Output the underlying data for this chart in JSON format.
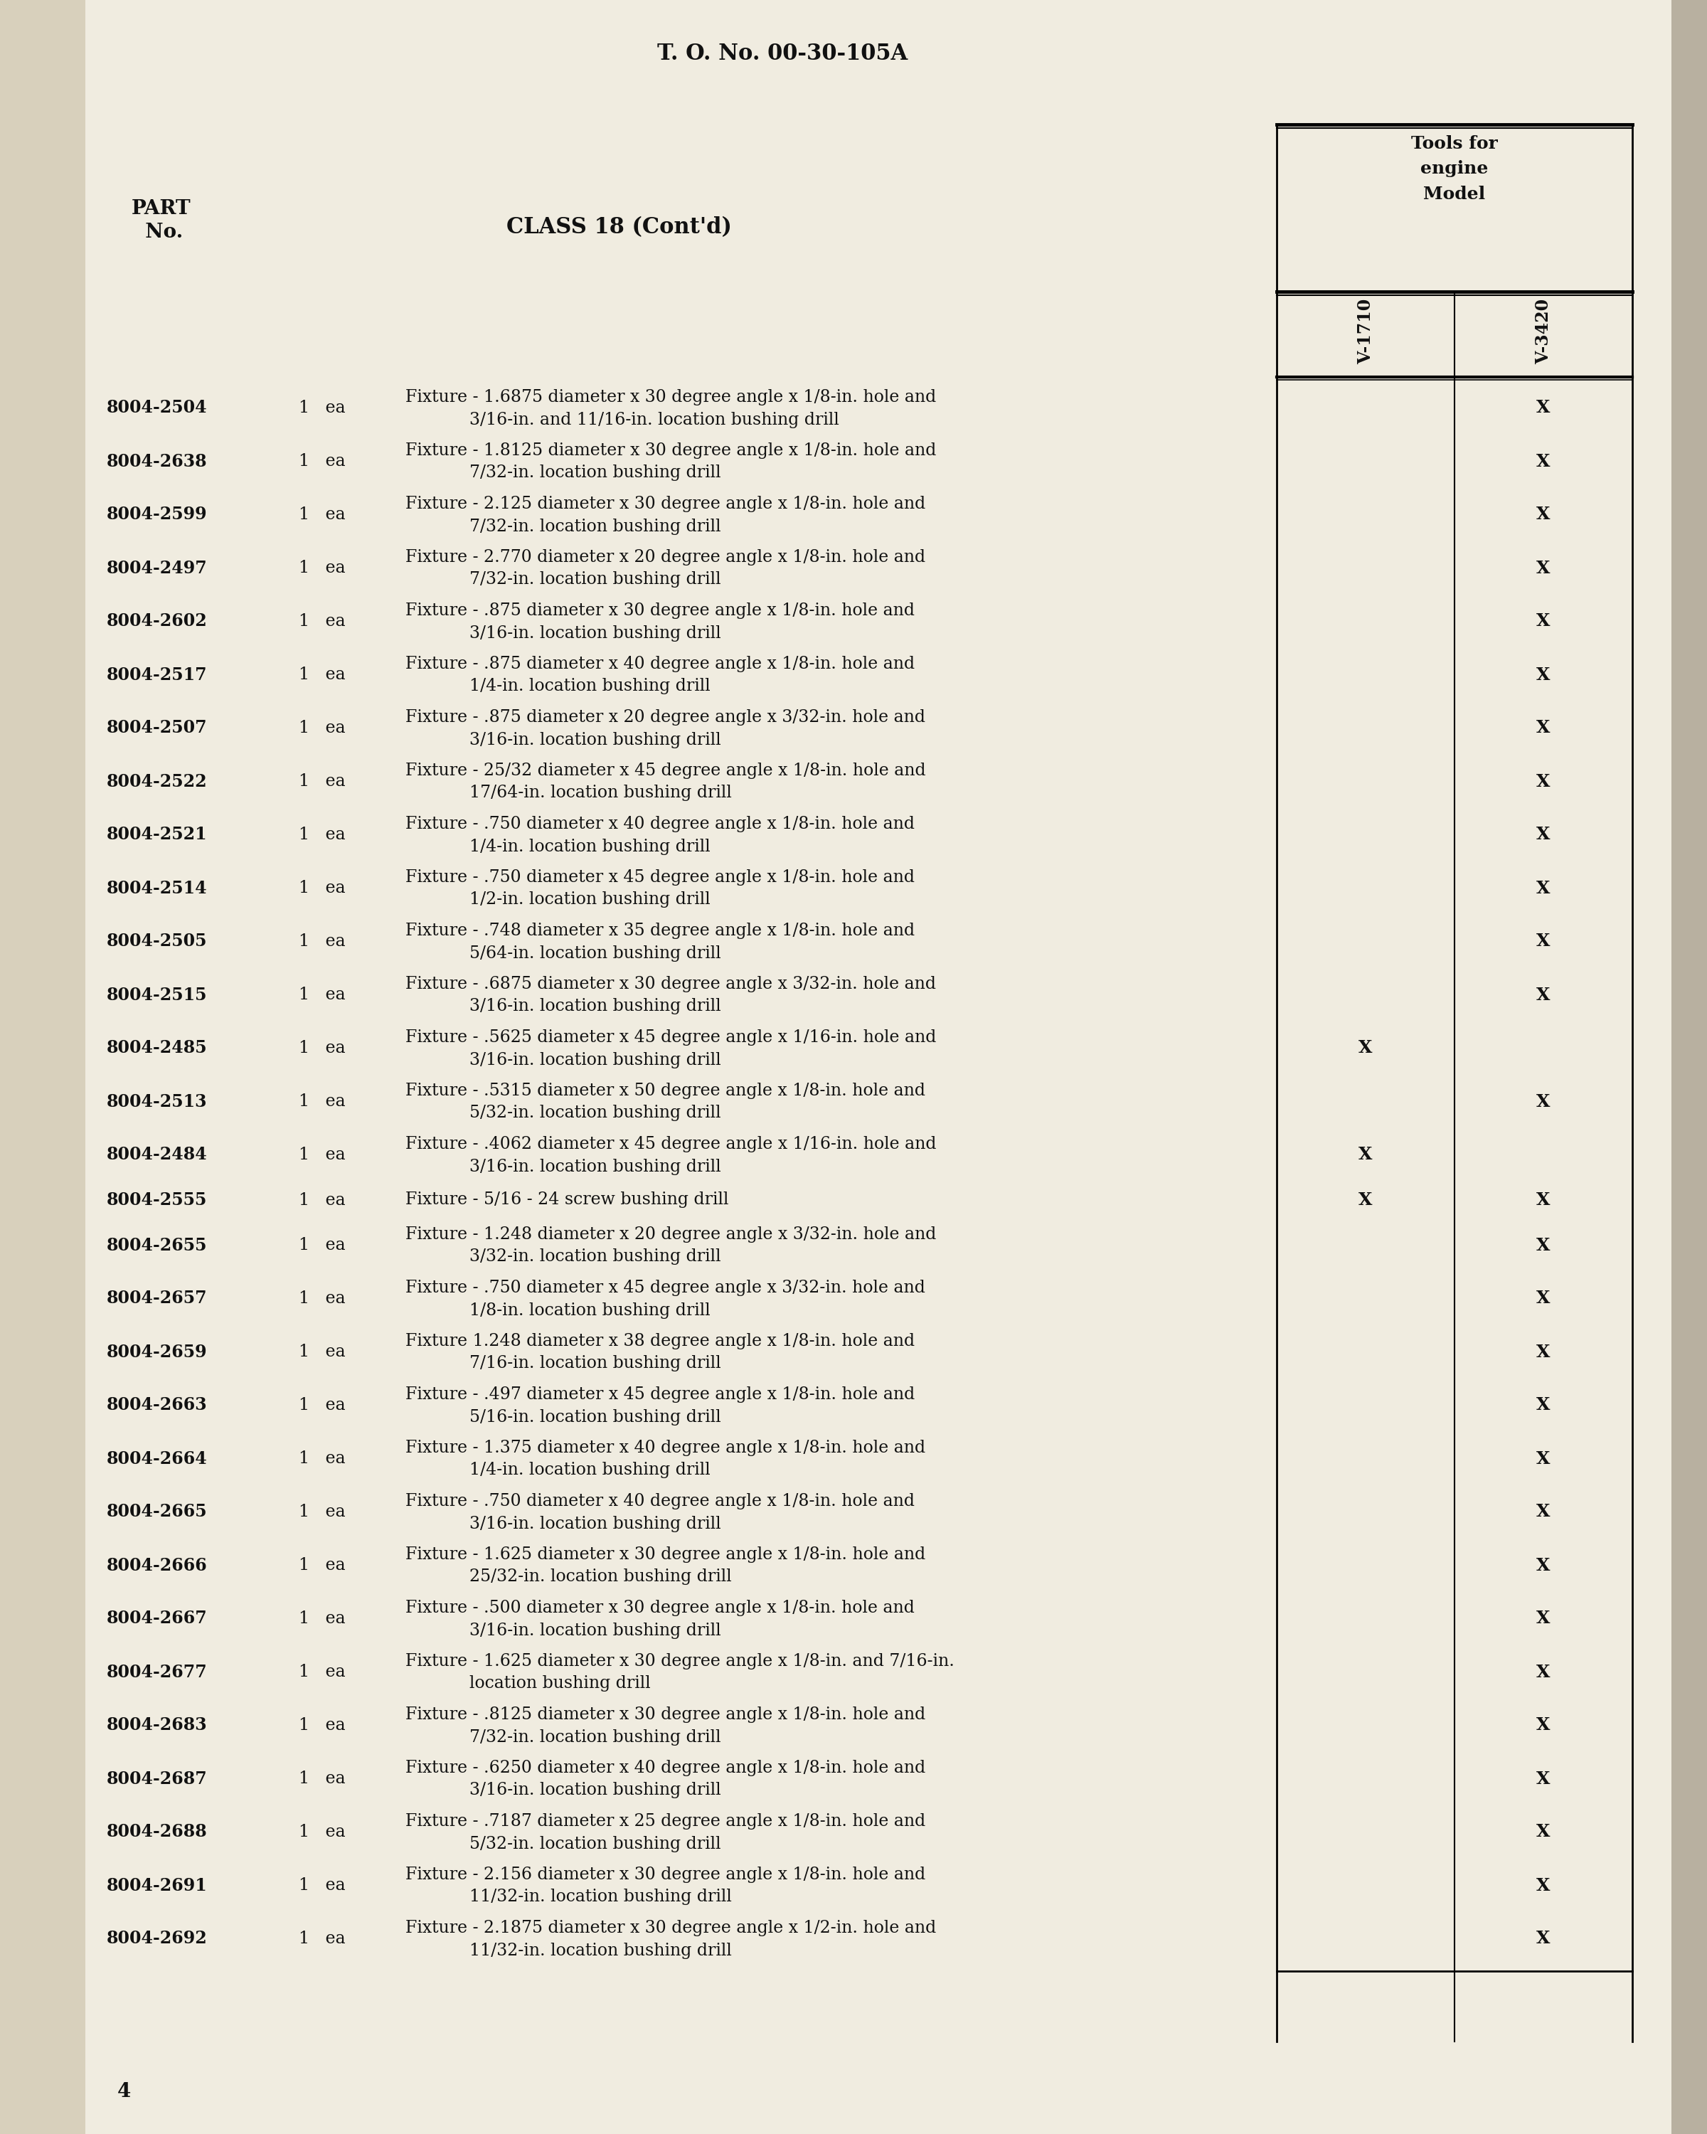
{
  "page_background": "#f0ece0",
  "header_text": "T. O. No. 00-30-105A",
  "page_number": "4",
  "rows": [
    {
      "part_no": "8004-2504",
      "qty": "1   ea",
      "description": "Fixture - 1.6875 diameter x 30 degree angle x 1/8-in. hole and",
      "description2": "3/16-in. and 11/16-in. location bushing drill",
      "v1710": false,
      "v3420": true
    },
    {
      "part_no": "8004-2638",
      "qty": "1   ea",
      "description": "Fixture - 1.8125 diameter x 30 degree angle x 1/8-in. hole and",
      "description2": "7/32-in. location bushing drill",
      "v1710": false,
      "v3420": true
    },
    {
      "part_no": "8004-2599",
      "qty": "1   ea",
      "description": "Fixture - 2.125 diameter x 30 degree angle x 1/8-in. hole and",
      "description2": "7/32-in. location bushing drill",
      "v1710": false,
      "v3420": true
    },
    {
      "part_no": "8004-2497",
      "qty": "1   ea",
      "description": "Fixture - 2.770 diameter x 20 degree angle x 1/8-in. hole and",
      "description2": "7/32-in. location bushing drill",
      "v1710": false,
      "v3420": true
    },
    {
      "part_no": "8004-2602",
      "qty": "1   ea",
      "description": "Fixture - .875 diameter x 30 degree angle x 1/8-in. hole and",
      "description2": "3/16-in. location bushing drill",
      "v1710": false,
      "v3420": true
    },
    {
      "part_no": "8004-2517",
      "qty": "1   ea",
      "description": "Fixture - .875 diameter x 40 degree angle x 1/8-in. hole and",
      "description2": "1/4-in. location bushing drill",
      "v1710": false,
      "v3420": true
    },
    {
      "part_no": "8004-2507",
      "qty": "1   ea",
      "description": "Fixture - .875 diameter x 20 degree angle x 3/32-in. hole and",
      "description2": "3/16-in. location bushing drill",
      "v1710": false,
      "v3420": true
    },
    {
      "part_no": "8004-2522",
      "qty": "1   ea",
      "description": "Fixture - 25/32 diameter x 45 degree angle x 1/8-in. hole and",
      "description2": "17/64-in. location bushing drill",
      "v1710": false,
      "v3420": true
    },
    {
      "part_no": "8004-2521",
      "qty": "1   ea",
      "description": "Fixture - .750 diameter x 40 degree angle x 1/8-in. hole and",
      "description2": "1/4-in. location bushing drill",
      "v1710": false,
      "v3420": true
    },
    {
      "part_no": "8004-2514",
      "qty": "1   ea",
      "description": "Fixture - .750 diameter x 45 degree angle x 1/8-in. hole and",
      "description2": "1/2-in. location bushing drill",
      "v1710": false,
      "v3420": true
    },
    {
      "part_no": "8004-2505",
      "qty": "1   ea",
      "description": "Fixture - .748 diameter x 35 degree angle x 1/8-in. hole and",
      "description2": "5/64-in. location bushing drill",
      "v1710": false,
      "v3420": true
    },
    {
      "part_no": "8004-2515",
      "qty": "1   ea",
      "description": "Fixture - .6875 diameter x 30 degree angle x 3/32-in. hole and",
      "description2": "3/16-in. location bushing drill",
      "v1710": false,
      "v3420": true
    },
    {
      "part_no": "8004-2485",
      "qty": "1   ea",
      "description": "Fixture - .5625 diameter x 45 degree angle x 1/16-in. hole and",
      "description2": "3/16-in. location bushing drill",
      "v1710": true,
      "v3420": false
    },
    {
      "part_no": "8004-2513",
      "qty": "1   ea",
      "description": "Fixture - .5315 diameter x 50 degree angle x 1/8-in. hole and",
      "description2": "5/32-in. location bushing drill",
      "v1710": false,
      "v3420": true
    },
    {
      "part_no": "8004-2484",
      "qty": "1   ea",
      "description": "Fixture - .4062 diameter x 45 degree angle x 1/16-in. hole and",
      "description2": "3/16-in. location bushing drill",
      "v1710": true,
      "v3420": false
    },
    {
      "part_no": "8004-2555",
      "qty": "1   ea",
      "description": "Fixture - 5/16 - 24 screw bushing drill",
      "description2": "",
      "v1710": true,
      "v3420": true
    },
    {
      "part_no": "8004-2655",
      "qty": "1   ea",
      "description": "Fixture - 1.248 diameter x 20 degree angle x 3/32-in. hole and",
      "description2": "3/32-in. location bushing drill",
      "v1710": false,
      "v3420": true
    },
    {
      "part_no": "8004-2657",
      "qty": "1   ea",
      "description": "Fixture - .750 diameter x 45 degree angle x 3/32-in. hole and",
      "description2": "1/8-in. location bushing drill",
      "v1710": false,
      "v3420": true
    },
    {
      "part_no": "8004-2659",
      "qty": "1   ea",
      "description": "Fixture 1.248 diameter x 38 degree angle x 1/8-in. hole and",
      "description2": "7/16-in. location bushing drill",
      "v1710": false,
      "v3420": true
    },
    {
      "part_no": "8004-2663",
      "qty": "1   ea",
      "description": "Fixture - .497 diameter x 45 degree angle x 1/8-in. hole and",
      "description2": "5/16-in. location bushing drill",
      "v1710": false,
      "v3420": true
    },
    {
      "part_no": "8004-2664",
      "qty": "1   ea",
      "description": "Fixture - 1.375 diameter x 40 degree angle x 1/8-in. hole and",
      "description2": "1/4-in. location bushing drill",
      "v1710": false,
      "v3420": true
    },
    {
      "part_no": "8004-2665",
      "qty": "1   ea",
      "description": "Fixture - .750 diameter x 40 degree angle x 1/8-in. hole and",
      "description2": "3/16-in. location bushing drill",
      "v1710": false,
      "v3420": true
    },
    {
      "part_no": "8004-2666",
      "qty": "1   ea",
      "description": "Fixture - 1.625 diameter x 30 degree angle x 1/8-in. hole and",
      "description2": "25/32-in. location bushing drill",
      "v1710": false,
      "v3420": true
    },
    {
      "part_no": "8004-2667",
      "qty": "1   ea",
      "description": "Fixture - .500 diameter x 30 degree angle x 1/8-in. hole and",
      "description2": "3/16-in. location bushing drill",
      "v1710": false,
      "v3420": true
    },
    {
      "part_no": "8004-2677",
      "qty": "1   ea",
      "description": "Fixture - 1.625 diameter x 30 degree angle x 1/8-in. and 7/16-in.",
      "description2": "location bushing drill",
      "v1710": false,
      "v3420": true
    },
    {
      "part_no": "8004-2683",
      "qty": "1   ea",
      "description": "Fixture - .8125 diameter x 30 degree angle x 1/8-in. hole and",
      "description2": "7/32-in. location bushing drill",
      "v1710": false,
      "v3420": true
    },
    {
      "part_no": "8004-2687",
      "qty": "1   ea",
      "description": "Fixture - .6250 diameter x 40 degree angle x 1/8-in. hole and",
      "description2": "3/16-in. location bushing drill",
      "v1710": false,
      "v3420": true
    },
    {
      "part_no": "8004-2688",
      "qty": "1   ea",
      "description": "Fixture - .7187 diameter x 25 degree angle x 1/8-in. hole and",
      "description2": "5/32-in. location bushing drill",
      "v1710": false,
      "v3420": true
    },
    {
      "part_no": "8004-2691",
      "qty": "1   ea",
      "description": "Fixture - 2.156 diameter x 30 degree angle x 1/8-in. hole and",
      "description2": "11/32-in. location bushing drill",
      "v1710": false,
      "v3420": true
    },
    {
      "part_no": "8004-2692",
      "qty": "1   ea",
      "description": "Fixture - 2.1875 diameter x 30 degree angle x 1/2-in. hole and",
      "description2": "11/32-in. location bushing drill",
      "v1710": false,
      "v3420": true
    }
  ]
}
